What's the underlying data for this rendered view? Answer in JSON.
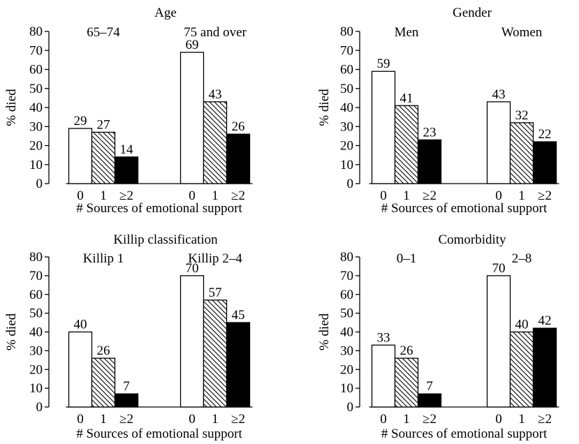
{
  "chart_data": [
    {
      "type": "bar",
      "title": "Age",
      "group_labels": [
        "65–74",
        "75 and over"
      ],
      "categories": [
        "0",
        "1",
        "≥2"
      ],
      "values": [
        [
          29,
          27,
          14
        ],
        [
          69,
          43,
          26
        ]
      ],
      "xlabel": "# Sources of emotional support",
      "ylabel": "% died",
      "ylim": [
        0,
        80
      ],
      "yticks": [
        "0",
        "10",
        "20",
        "30",
        "40",
        "50",
        "60",
        "70",
        "80"
      ],
      "fills": [
        "white",
        "hatched",
        "black"
      ],
      "grid": false
    },
    {
      "type": "bar",
      "title": "Gender",
      "group_labels": [
        "Men",
        "Women"
      ],
      "categories": [
        "0",
        "1",
        "≥2"
      ],
      "values": [
        [
          59,
          41,
          23
        ],
        [
          43,
          32,
          22
        ]
      ],
      "xlabel": "# Sources of emotional support",
      "ylabel": "% died",
      "ylim": [
        0,
        80
      ],
      "yticks": [
        "0",
        "10",
        "20",
        "30",
        "40",
        "50",
        "60",
        "70",
        "80"
      ],
      "fills": [
        "white",
        "hatched",
        "black"
      ],
      "grid": false
    },
    {
      "type": "bar",
      "title": "Killip classification",
      "group_labels": [
        "Killip 1",
        "Killip 2–4"
      ],
      "categories": [
        "0",
        "1",
        "≥2"
      ],
      "values": [
        [
          40,
          26,
          7
        ],
        [
          70,
          57,
          45
        ]
      ],
      "xlabel": "# Sources of emotional support",
      "ylabel": "% died",
      "ylim": [
        0,
        80
      ],
      "yticks": [
        "0",
        "10",
        "20",
        "30",
        "40",
        "50",
        "60",
        "70",
        "80"
      ],
      "fills": [
        "white",
        "hatched",
        "black"
      ],
      "grid": false
    },
    {
      "type": "bar",
      "title": "Comorbidity",
      "group_labels": [
        "0–1",
        "2–8"
      ],
      "categories": [
        "0",
        "1",
        "≥2"
      ],
      "values": [
        [
          33,
          26,
          7
        ],
        [
          70,
          40,
          42
        ]
      ],
      "xlabel": "# Sources of emotional support",
      "ylabel": "% died",
      "ylim": [
        0,
        80
      ],
      "yticks": [
        "0",
        "10",
        "20",
        "30",
        "40",
        "50",
        "60",
        "70",
        "80"
      ],
      "fills": [
        "white",
        "hatched",
        "black"
      ],
      "grid": false
    }
  ],
  "colors": {
    "ink": "#000000",
    "paper": "#ffffff"
  }
}
